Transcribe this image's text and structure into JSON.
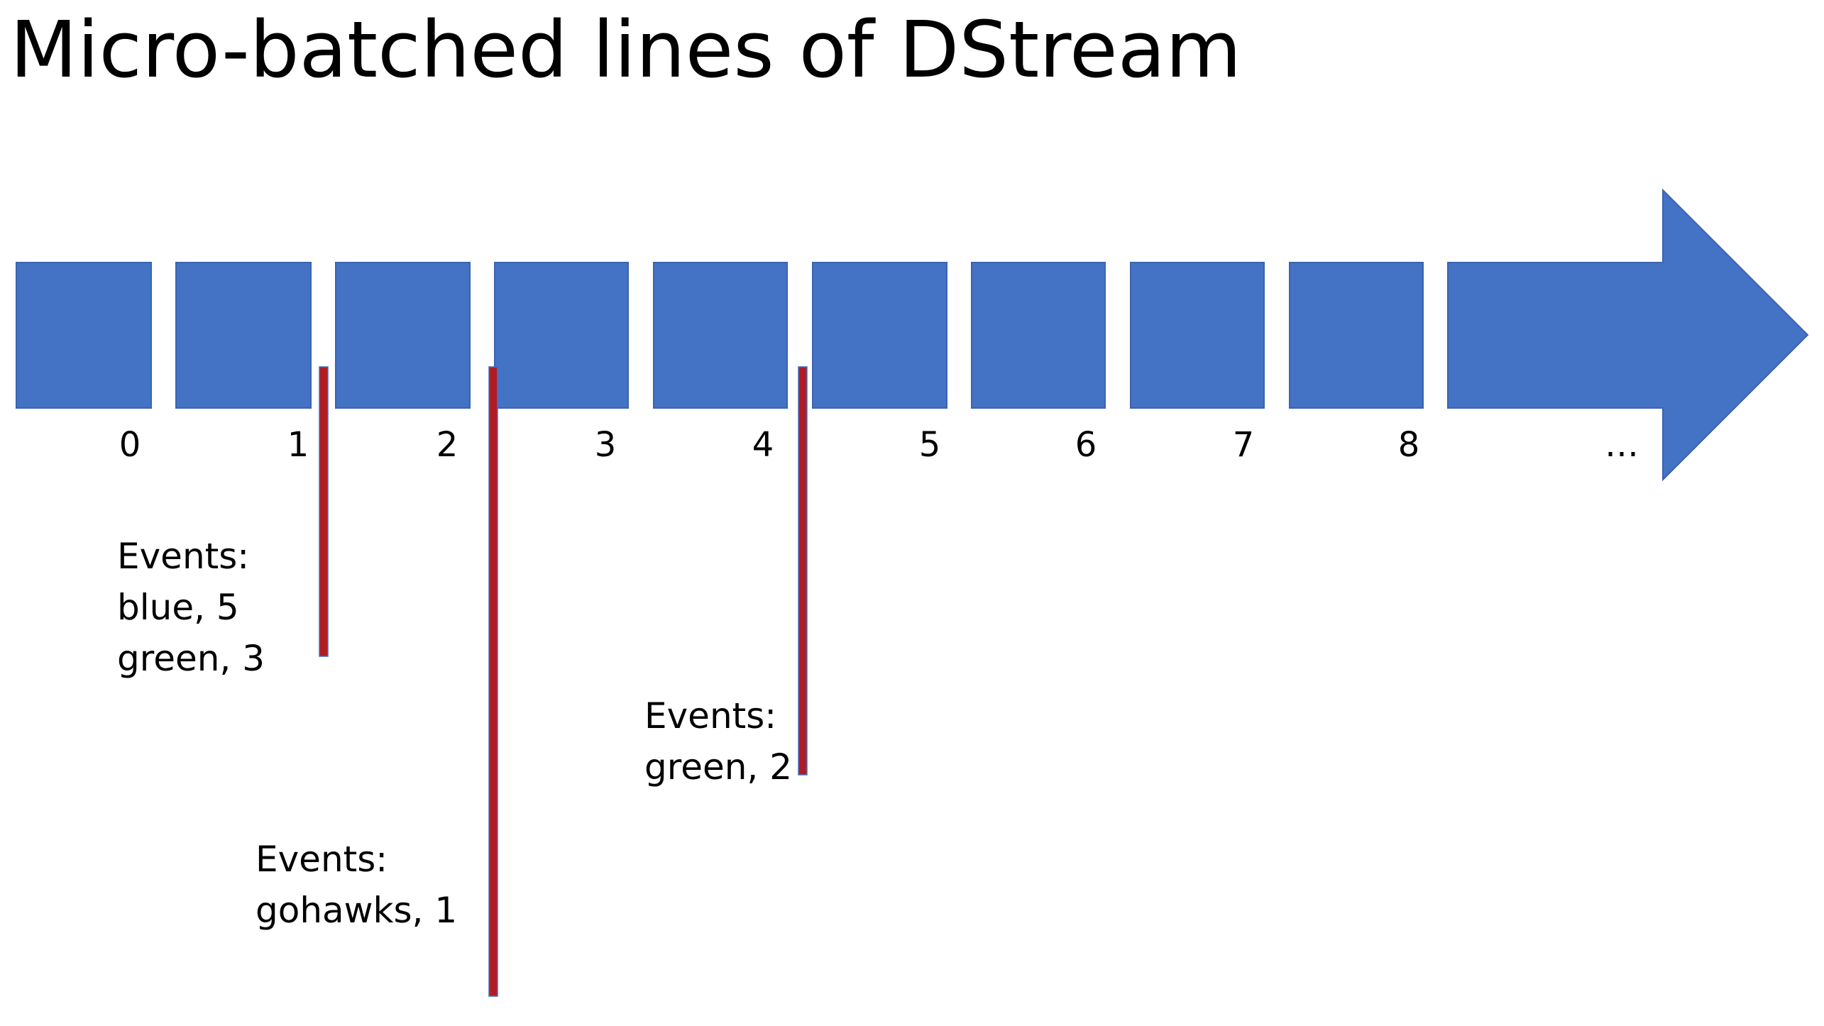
{
  "title": "Micro-batched lines of DStream",
  "colors": {
    "batch_fill": "#4472C4",
    "batch_border": "#3A64AE",
    "event_marker": "#B01C24",
    "event_marker_border": "#4472C4"
  },
  "timeline": {
    "labels": [
      "0",
      "1",
      "2",
      "3",
      "4",
      "5",
      "6",
      "7",
      "8",
      "…"
    ]
  },
  "event_groups": [
    {
      "lines": [
        "Events:",
        "blue, 5",
        "green, 3"
      ]
    },
    {
      "lines": [
        "Events:",
        "gohawks, 1"
      ]
    },
    {
      "lines": [
        "Events:",
        "green, 2"
      ]
    }
  ]
}
